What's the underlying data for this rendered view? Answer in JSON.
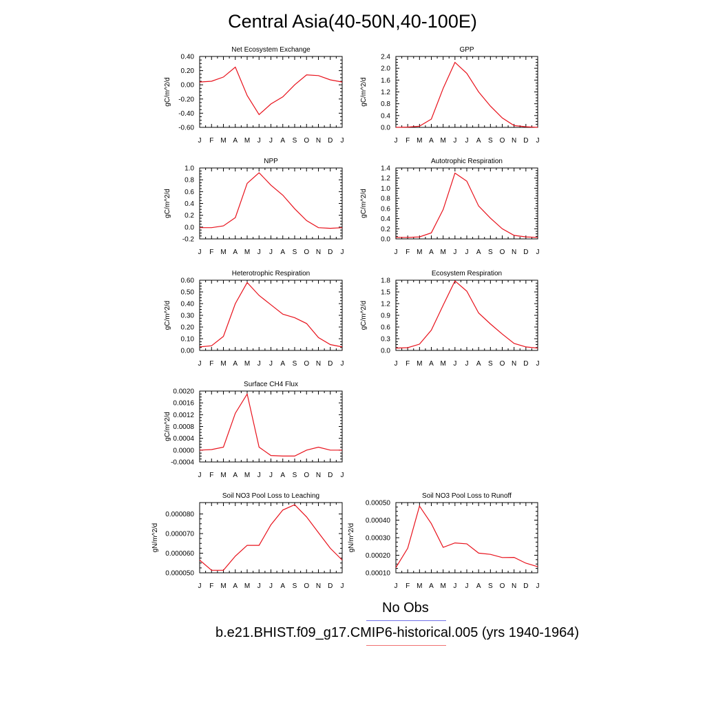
{
  "title": "Central Asia(40-50N,40-100E)",
  "legend": [
    {
      "label": "No Obs",
      "color": "#7070e8"
    },
    {
      "label": "b.e21.BHIST.f09_g17.CMIP6-historical.005 (yrs 1940-1964)",
      "color": "#f07070"
    }
  ],
  "series_color": "#e8101a",
  "chart_data": [
    {
      "type": "line",
      "title": "Net Ecosystem Exchange",
      "ylabel": "gC/m^2/d",
      "x": [
        "J",
        "F",
        "M",
        "A",
        "M",
        "J",
        "J",
        "A",
        "S",
        "O",
        "N",
        "D",
        "J"
      ],
      "ylim": [
        -0.6,
        0.4
      ],
      "yticks": [
        "0.40",
        "0.20",
        "0.00",
        "-0.20",
        "-0.40",
        "-0.60"
      ],
      "values": [
        0.04,
        0.05,
        0.11,
        0.25,
        -0.15,
        -0.42,
        -0.27,
        -0.17,
        0.0,
        0.14,
        0.13,
        0.07,
        0.04
      ]
    },
    {
      "type": "line",
      "title": "GPP",
      "ylabel": "gC/m^2/d",
      "x": [
        "J",
        "F",
        "M",
        "A",
        "M",
        "J",
        "J",
        "A",
        "S",
        "O",
        "N",
        "D",
        "J"
      ],
      "ylim": [
        0.0,
        2.4
      ],
      "yticks": [
        "2.4",
        "2.0",
        "1.6",
        "1.2",
        "0.8",
        "0.4",
        "0.0"
      ],
      "values": [
        0.0,
        0.01,
        0.04,
        0.28,
        1.32,
        2.2,
        1.83,
        1.2,
        0.72,
        0.32,
        0.06,
        0.02,
        0.0
      ]
    },
    {
      "type": "line",
      "title": "NPP",
      "ylabel": "gC/m^2/d",
      "x": [
        "J",
        "F",
        "M",
        "A",
        "M",
        "J",
        "J",
        "A",
        "S",
        "O",
        "N",
        "D",
        "J"
      ],
      "ylim": [
        -0.2,
        1.0
      ],
      "yticks": [
        "1.0",
        "0.8",
        "0.6",
        "0.4",
        "0.2",
        "0.0",
        "-0.2"
      ],
      "values": [
        -0.01,
        -0.01,
        0.02,
        0.16,
        0.74,
        0.92,
        0.71,
        0.54,
        0.31,
        0.11,
        -0.01,
        -0.02,
        -0.01
      ]
    },
    {
      "type": "line",
      "title": "Autotrophic Respiration",
      "ylabel": "gC/m^2/d",
      "x": [
        "J",
        "F",
        "M",
        "A",
        "M",
        "J",
        "J",
        "A",
        "S",
        "O",
        "N",
        "D",
        "J"
      ],
      "ylim": [
        0.0,
        1.4
      ],
      "yticks": [
        "1.4",
        "1.2",
        "1.0",
        "0.8",
        "0.6",
        "0.4",
        "0.2",
        "0.0"
      ],
      "values": [
        0.03,
        0.03,
        0.04,
        0.12,
        0.58,
        1.3,
        1.14,
        0.65,
        0.41,
        0.2,
        0.07,
        0.04,
        0.03
      ]
    },
    {
      "type": "line",
      "title": "Heterotrophic Respiration",
      "ylabel": "gC/m^2/d",
      "x": [
        "J",
        "F",
        "M",
        "A",
        "M",
        "J",
        "J",
        "A",
        "S",
        "O",
        "N",
        "D",
        "J"
      ],
      "ylim": [
        0.0,
        0.6
      ],
      "yticks": [
        "0.60",
        "0.50",
        "0.40",
        "0.30",
        "0.20",
        "0.10",
        "0.00"
      ],
      "values": [
        0.03,
        0.04,
        0.12,
        0.4,
        0.58,
        0.47,
        0.39,
        0.31,
        0.28,
        0.23,
        0.11,
        0.05,
        0.03
      ]
    },
    {
      "type": "line",
      "title": "Ecosystem Respiration",
      "ylabel": "gC/m^2/d",
      "x": [
        "J",
        "F",
        "M",
        "A",
        "M",
        "J",
        "J",
        "A",
        "S",
        "O",
        "N",
        "D",
        "J"
      ],
      "ylim": [
        0.0,
        1.8
      ],
      "yticks": [
        "1.8",
        "1.5",
        "1.2",
        "0.9",
        "0.6",
        "0.3",
        "0.0"
      ],
      "values": [
        0.06,
        0.07,
        0.16,
        0.52,
        1.16,
        1.78,
        1.52,
        0.96,
        0.68,
        0.42,
        0.18,
        0.09,
        0.06
      ]
    },
    {
      "type": "line",
      "title": "Surface CH4 Flux",
      "ylabel": "gC/m^2/d",
      "x": [
        "J",
        "F",
        "M",
        "A",
        "M",
        "J",
        "J",
        "A",
        "S",
        "O",
        "N",
        "D",
        "J"
      ],
      "ylim": [
        -0.0004,
        0.002
      ],
      "yticks": [
        "0.0020",
        "0.0016",
        "0.0012",
        "0.0008",
        "0.0004",
        "0.0000",
        "-0.0004"
      ],
      "values": [
        0.0,
        2e-05,
        0.0001,
        0.00125,
        0.0019,
        0.0001,
        -0.00018,
        -0.0002,
        -0.0002,
        0.0,
        0.0001,
        0.0,
        0.0
      ]
    },
    {
      "type": "line",
      "title": "Soil NO3 Pool Loss to Leaching",
      "ylabel": "gN/m^2/d",
      "x": [
        "J",
        "F",
        "M",
        "A",
        "M",
        "J",
        "J",
        "A",
        "S",
        "O",
        "N",
        "D",
        "J"
      ],
      "ylim": [
        5e-05,
        8.58e-05
      ],
      "yticks": [
        "0.000080",
        "0.000070",
        "0.000060",
        "0.000050"
      ],
      "values": [
        5.65e-05,
        5.13e-05,
        5.13e-05,
        5.85e-05,
        6.4e-05,
        6.4e-05,
        7.45e-05,
        8.2e-05,
        8.47e-05,
        7.85e-05,
        7.05e-05,
        6.25e-05,
        5.65e-05
      ]
    },
    {
      "type": "line",
      "title": "Soil NO3 Pool Loss to Runoff",
      "ylabel": "gN/m^2/d",
      "x": [
        "J",
        "F",
        "M",
        "A",
        "M",
        "J",
        "J",
        "A",
        "S",
        "O",
        "N",
        "D",
        "J"
      ],
      "ylim": [
        0.0001,
        0.0005
      ],
      "yticks": [
        "0.00050",
        "0.00040",
        "0.00030",
        "0.00020",
        "0.00010"
      ],
      "values": [
        0.00013,
        0.00024,
        0.00048,
        0.00038,
        0.000245,
        0.00027,
        0.000265,
        0.000212,
        0.000205,
        0.000187,
        0.000188,
        0.000155,
        0.000135
      ]
    }
  ]
}
